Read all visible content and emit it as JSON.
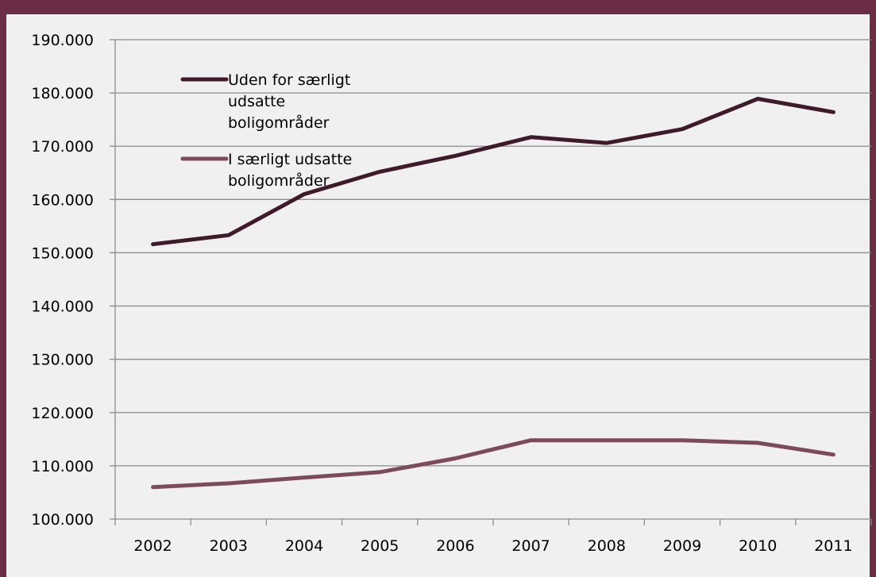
{
  "chart_data": {
    "type": "line",
    "x": [
      "2002",
      "2003",
      "2004",
      "2005",
      "2006",
      "2007",
      "2008",
      "2009",
      "2010",
      "2011"
    ],
    "series": [
      {
        "name": "Uden for særligt udsatte boligområder",
        "name_lines": [
          "Uden for særligt",
          "udsatte",
          "boligområder"
        ],
        "color": "#3f1a2a",
        "values": [
          151600,
          153300,
          161000,
          165200,
          168200,
          171700,
          170600,
          173200,
          178900,
          176400
        ]
      },
      {
        "name": "I særligt udsatte boligområder",
        "name_lines": [
          "I særligt udsatte",
          "boligområder"
        ],
        "color": "#7d4a5c",
        "values": [
          106000,
          106700,
          107800,
          108800,
          111400,
          114800,
          114800,
          114800,
          114300,
          112100
        ]
      }
    ],
    "ylim": [
      100000,
      190000
    ],
    "yticks": [
      "100.000",
      "110.000",
      "120.000",
      "130.000",
      "140.000",
      "150.000",
      "160.000",
      "170.000",
      "180.000",
      "190.000"
    ],
    "grid": true,
    "legend_position": "top-left"
  },
  "colors": {
    "frame": "#6b2d46",
    "background": "#f0f0f0",
    "grid": "#8c8c8c"
  }
}
